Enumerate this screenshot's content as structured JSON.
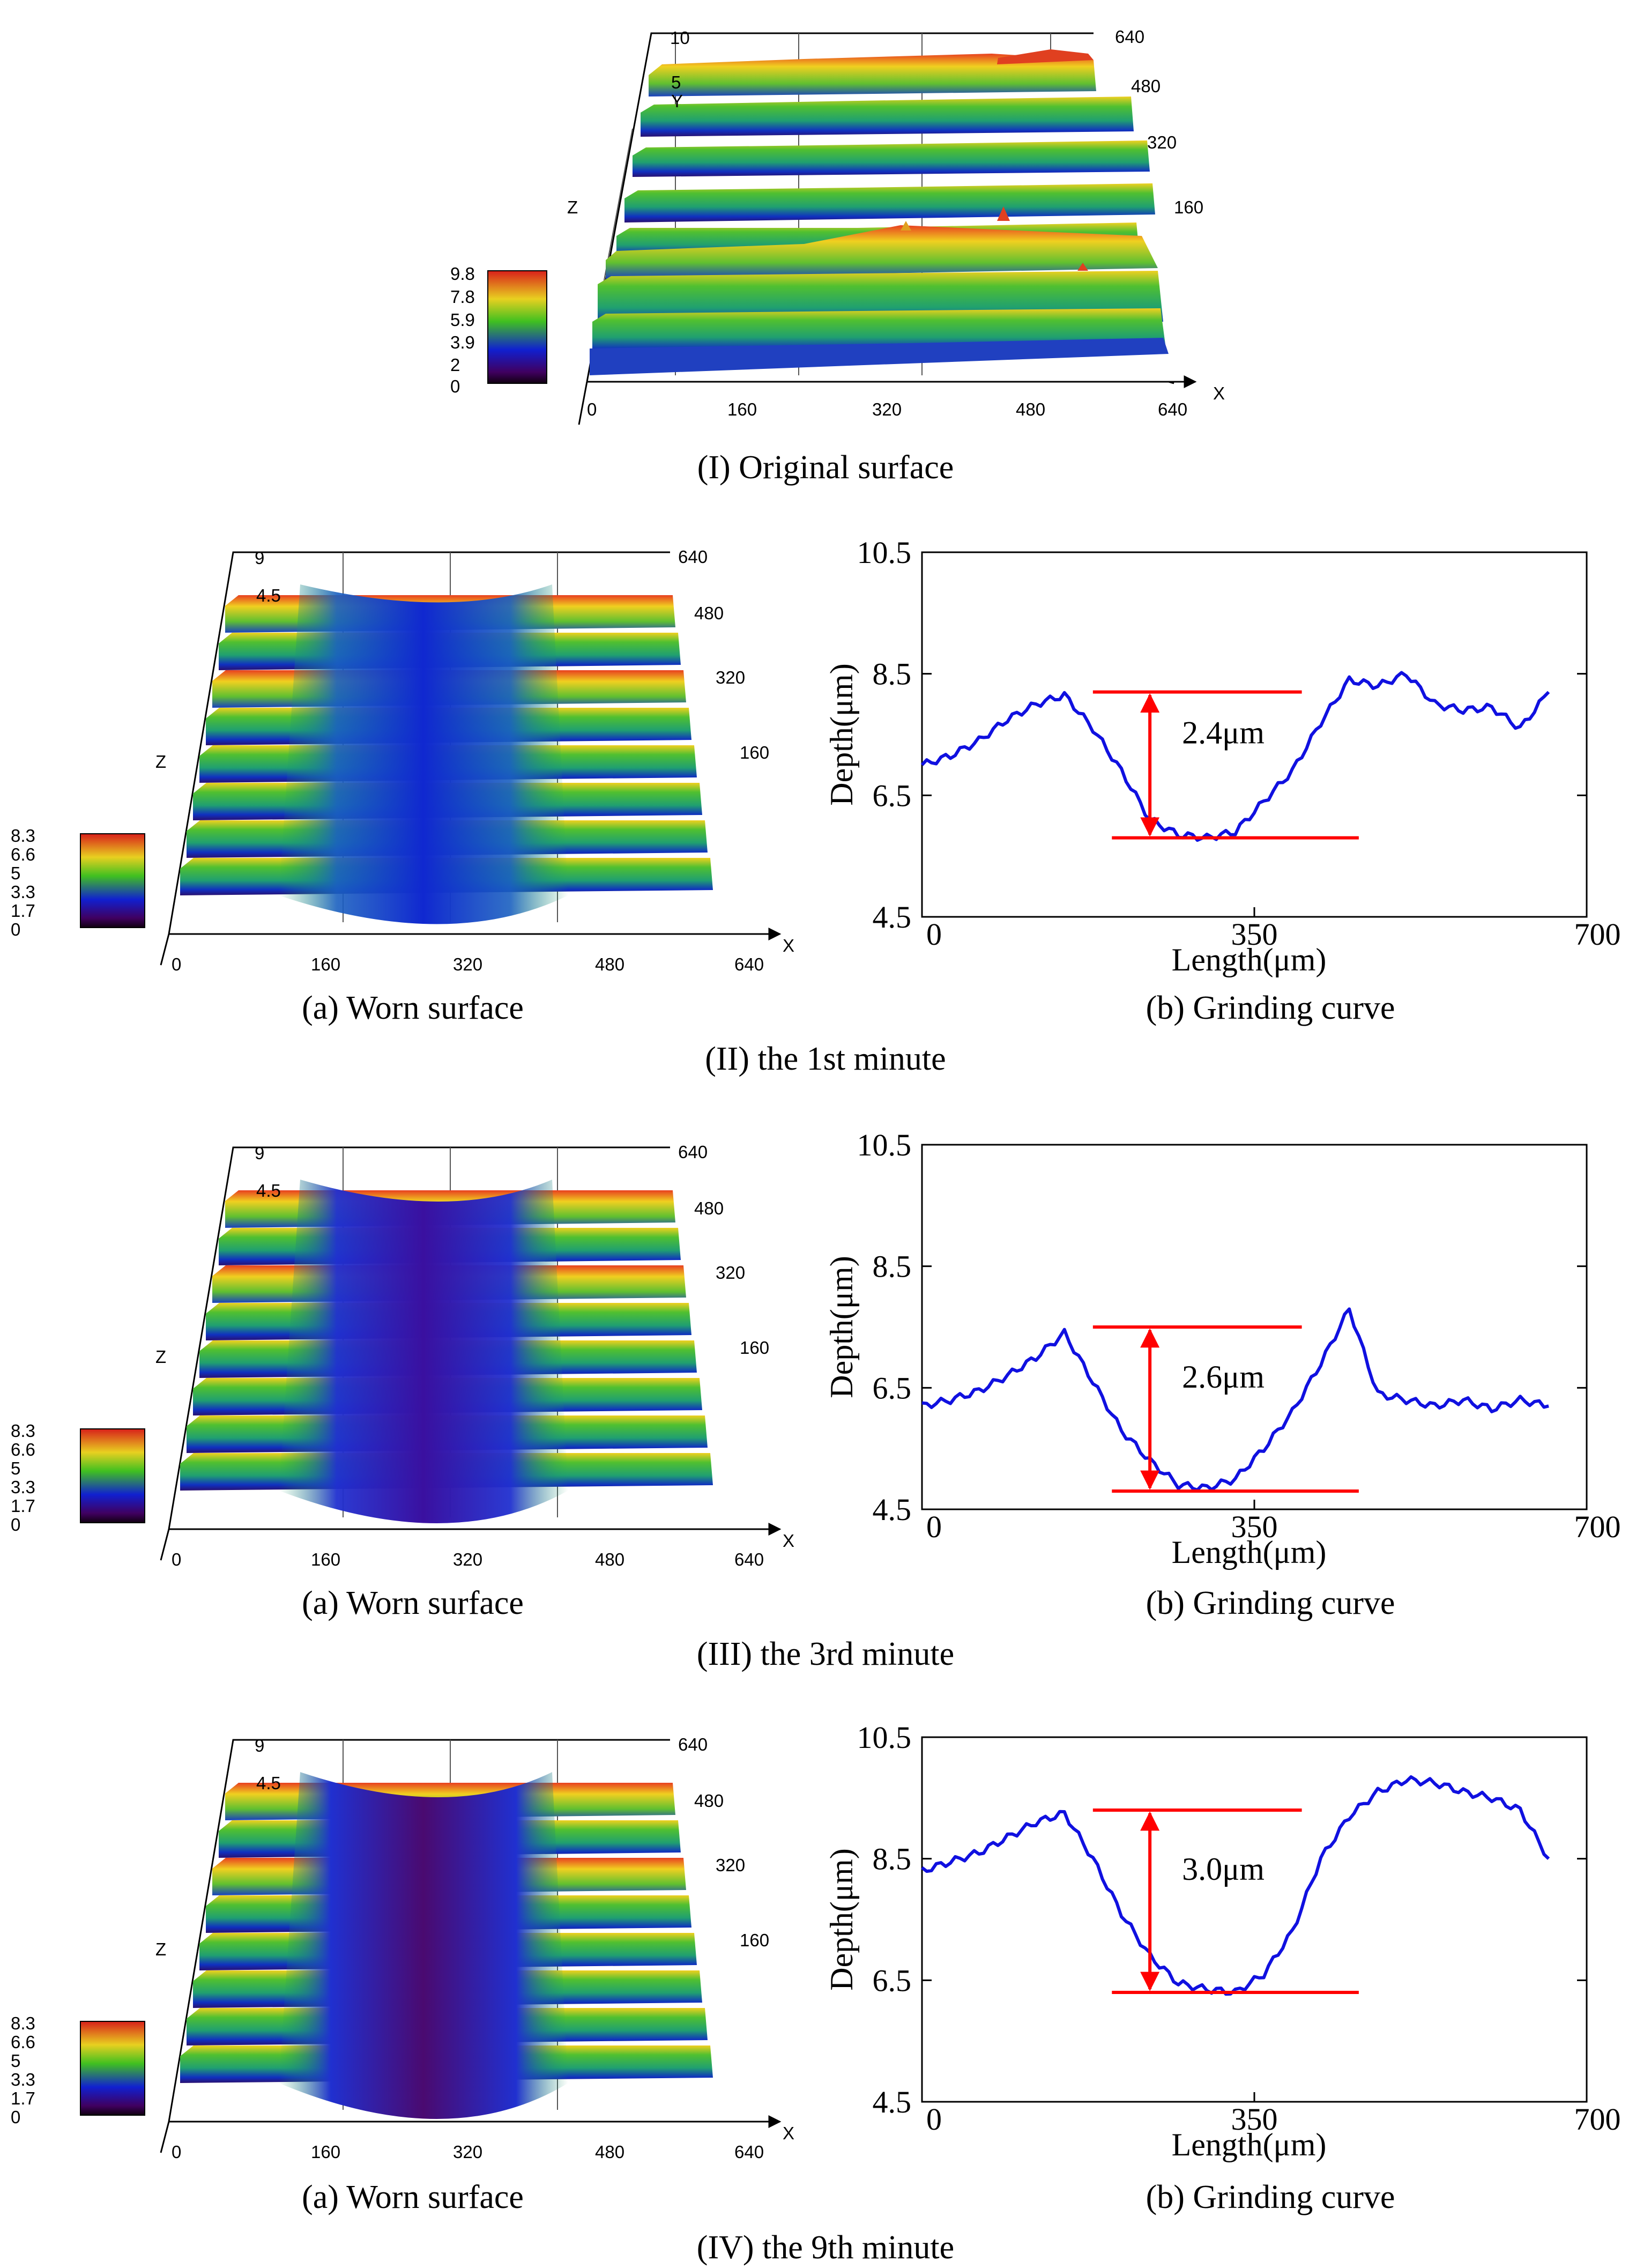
{
  "captions": {
    "original": "(I) Original surface",
    "min1": "(II) the 1st minute",
    "min3": "(III) the 3rd minute",
    "min9": "(IV) the 9th minute",
    "worn_a": "(a) Worn surface",
    "grind_b": "(b) Grinding curve"
  },
  "colors": {
    "curve": "#1010e0",
    "marker": "#ff0000"
  },
  "surfaces": [
    {
      "id": "original",
      "colorbar": [
        "9.8",
        "7.8",
        "5.9",
        "3.9",
        "2",
        "0"
      ],
      "x_ticks": [
        "0",
        "160",
        "320",
        "480",
        "640"
      ],
      "y_ticks": [
        "640",
        "480",
        "320",
        "160"
      ],
      "z_ticks": [
        "10",
        "5"
      ],
      "axis_z": "Z",
      "axis_x": "X",
      "axis_y": "Y",
      "worn": false
    },
    {
      "id": "min1",
      "colorbar": [
        "8.3",
        "6.6",
        "5",
        "3.3",
        "1.7",
        "0"
      ],
      "x_ticks": [
        "0",
        "160",
        "320",
        "480",
        "640"
      ],
      "y_ticks": [
        "640",
        "480",
        "320",
        "160"
      ],
      "z_ticks": [
        "9",
        "4.5"
      ],
      "axis_z": "Z",
      "axis_x": "X",
      "axis_y": "",
      "worn": true,
      "depth": 0.45
    },
    {
      "id": "min3",
      "colorbar": [
        "8.3",
        "6.6",
        "5",
        "3.3",
        "1.7",
        "0"
      ],
      "x_ticks": [
        "0",
        "160",
        "320",
        "480",
        "640"
      ],
      "y_ticks": [
        "640",
        "480",
        "320",
        "160"
      ],
      "z_ticks": [
        "9",
        "4.5"
      ],
      "axis_z": "Z",
      "axis_x": "X",
      "axis_y": "",
      "worn": true,
      "depth": 0.7
    },
    {
      "id": "min9",
      "colorbar": [
        "8.3",
        "6.6",
        "5",
        "3.3",
        "1.7",
        "0"
      ],
      "x_ticks": [
        "0",
        "160",
        "320",
        "480",
        "640"
      ],
      "y_ticks": [
        "640",
        "480",
        "320",
        "160"
      ],
      "z_ticks": [
        "9",
        "4.5"
      ],
      "axis_z": "Z",
      "axis_x": "X",
      "axis_y": "",
      "worn": true,
      "depth": 0.9
    }
  ],
  "chart_data": [
    {
      "type": "line",
      "panel": "(II) the 1st minute",
      "xlabel": "Length(μm)",
      "ylabel": "Depth(μm)",
      "xlim": [
        0,
        700
      ],
      "ylim": [
        4.5,
        10.5
      ],
      "x_ticks": [
        "0",
        "350",
        "700"
      ],
      "y_ticks": [
        "10.5",
        "8.5",
        "6.5",
        "4.5"
      ],
      "annotation": "2.4μm",
      "top_level": 8.2,
      "bottom_level": 5.8,
      "x": [
        0,
        30,
        60,
        90,
        120,
        150,
        180,
        210,
        240,
        270,
        300,
        330,
        360,
        390,
        420,
        450,
        480,
        510,
        540,
        570,
        600,
        630,
        660
      ],
      "y": [
        7.0,
        7.15,
        7.4,
        7.75,
        8.0,
        8.15,
        7.6,
        6.9,
        6.1,
        5.85,
        5.8,
        5.9,
        6.4,
        6.9,
        7.7,
        8.4,
        8.3,
        8.5,
        8.0,
        7.9,
        7.95,
        7.6,
        8.2
      ]
    },
    {
      "type": "line",
      "panel": "(III) the 3rd minute",
      "xlabel": "Length(μm)",
      "ylabel": "Depth(μm)",
      "xlim": [
        0,
        700
      ],
      "ylim": [
        4.5,
        10.5
      ],
      "x_ticks": [
        "0",
        "350",
        "700"
      ],
      "y_ticks": [
        "10.5",
        "8.5",
        "6.5",
        "4.5"
      ],
      "annotation": "2.6μm",
      "top_level": 7.5,
      "bottom_level": 4.8,
      "x": [
        0,
        30,
        60,
        90,
        120,
        150,
        180,
        210,
        240,
        270,
        300,
        330,
        360,
        390,
        420,
        450,
        480,
        510,
        540,
        570,
        600,
        630,
        660
      ],
      "y": [
        6.2,
        6.3,
        6.45,
        6.7,
        7.0,
        7.4,
        6.6,
        5.8,
        5.3,
        4.9,
        4.85,
        5.0,
        5.5,
        6.1,
        6.9,
        7.8,
        6.4,
        6.3,
        6.2,
        6.3,
        6.15,
        6.3,
        6.2
      ]
    },
    {
      "type": "line",
      "panel": "(IV) the 9th minute",
      "xlabel": "Length(μm)",
      "ylabel": "Depth(μm)",
      "xlim": [
        0,
        700
      ],
      "ylim": [
        4.5,
        10.5
      ],
      "x_ticks": [
        "0",
        "350",
        "700"
      ],
      "y_ticks": [
        "10.5",
        "8.5",
        "6.5",
        "4.5"
      ],
      "annotation": "3.0μm",
      "top_level": 9.3,
      "bottom_level": 6.3,
      "x": [
        0,
        30,
        60,
        90,
        120,
        150,
        180,
        210,
        240,
        270,
        300,
        330,
        360,
        390,
        420,
        450,
        480,
        510,
        540,
        570,
        600,
        630,
        660
      ],
      "y": [
        8.3,
        8.45,
        8.6,
        8.85,
        9.1,
        9.25,
        8.5,
        7.6,
        6.9,
        6.45,
        6.35,
        6.3,
        6.6,
        7.3,
        8.5,
        9.2,
        9.6,
        9.8,
        9.75,
        9.6,
        9.5,
        9.3,
        8.5
      ]
    }
  ]
}
